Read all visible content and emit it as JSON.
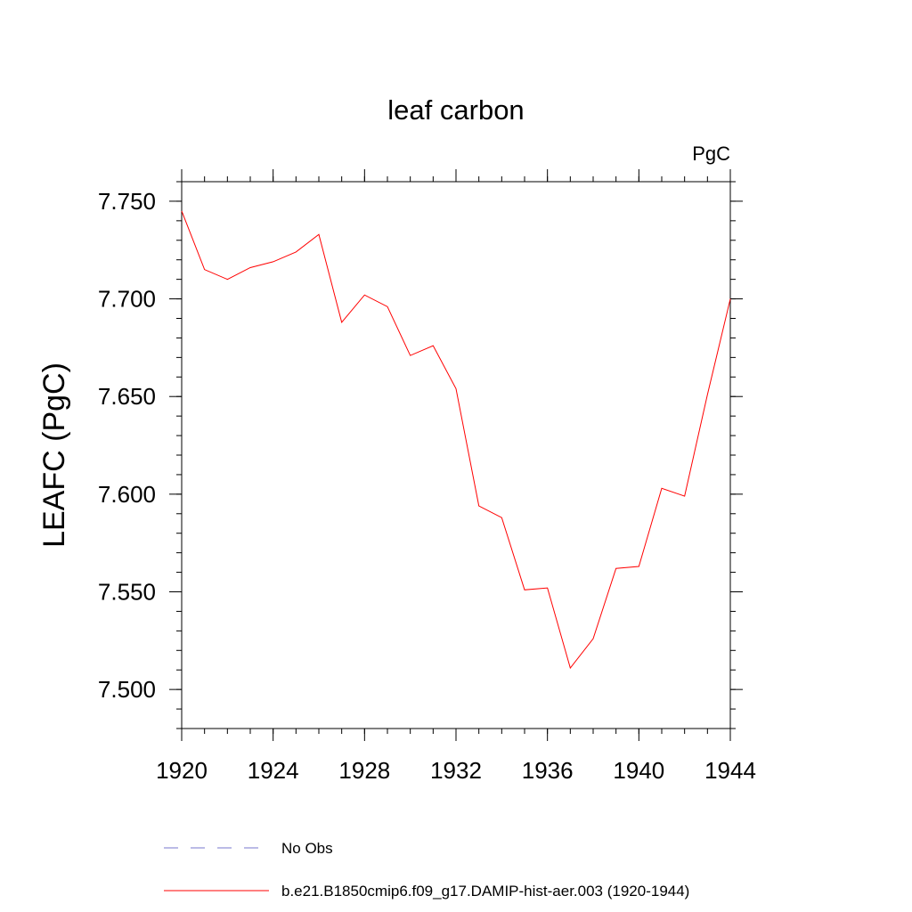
{
  "chart_data": {
    "type": "line",
    "title": "leaf carbon",
    "units": "PgC",
    "ylabel": "LEAFC  (PgC)",
    "xlabel": "",
    "xlim": [
      1920,
      1944
    ],
    "ylim": [
      7.48,
      7.76
    ],
    "x_ticks": [
      "1920",
      "1924",
      "1928",
      "1932",
      "1936",
      "1940",
      "1944"
    ],
    "y_ticks": [
      "7.500",
      "7.550",
      "7.600",
      "7.650",
      "7.700",
      "7.750"
    ],
    "x_minor_step": 1,
    "y_minor_step": 0.01,
    "grid": false,
    "legend_position": "bottom",
    "series": [
      {
        "name": "b.e21.B1850cmip6.f09_g17.DAMIP-hist-aer.003 (1920-1944)",
        "color": "#ff0000",
        "style": "solid",
        "x": [
          1920,
          1921,
          1922,
          1923,
          1924,
          1925,
          1926,
          1927,
          1928,
          1929,
          1930,
          1931,
          1932,
          1933,
          1934,
          1935,
          1936,
          1937,
          1938,
          1939,
          1940,
          1941,
          1942,
          1943,
          1944
        ],
        "values": [
          7.745,
          7.715,
          7.71,
          7.716,
          7.719,
          7.724,
          7.733,
          7.688,
          7.702,
          7.696,
          7.671,
          7.676,
          7.654,
          7.594,
          7.588,
          7.551,
          7.552,
          7.511,
          7.526,
          7.562,
          7.563,
          7.603,
          7.599,
          7.651,
          7.7
        ]
      }
    ],
    "legend": [
      {
        "label": "No Obs",
        "color": "#7777cc",
        "style": "dashed"
      },
      {
        "label": "b.e21.B1850cmip6.f09_g17.DAMIP-hist-aer.003 (1920-1944)",
        "color": "#ff0000",
        "style": "solid"
      }
    ]
  }
}
